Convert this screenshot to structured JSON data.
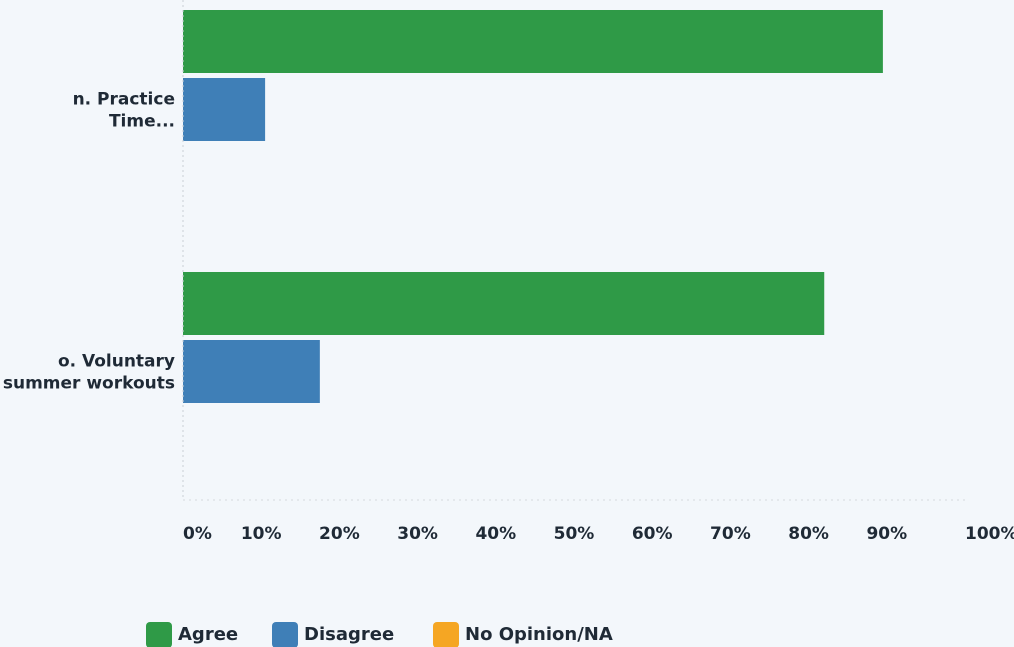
{
  "chart_data": {
    "type": "bar",
    "orientation": "horizontal",
    "categories": [
      [
        "n. Practice",
        "Time..."
      ],
      [
        "o. Voluntary",
        "summer workouts"
      ]
    ],
    "series": [
      {
        "name": "Agree",
        "color": "#2f9a47",
        "values": [
          89.5,
          82
        ]
      },
      {
        "name": "Disagree",
        "color": "#3f7fb7",
        "values": [
          10.5,
          17.5
        ]
      },
      {
        "name": "No Opinion/NA",
        "color": "#f5a623",
        "values": [
          0,
          0
        ]
      }
    ],
    "x_ticks": [
      "0%",
      "10%",
      "20%",
      "30%",
      "40%",
      "50%",
      "60%",
      "70%",
      "80%",
      "90%",
      "100%"
    ],
    "xlim": [
      0,
      100
    ],
    "grid": false,
    "legend_position": "bottom"
  }
}
